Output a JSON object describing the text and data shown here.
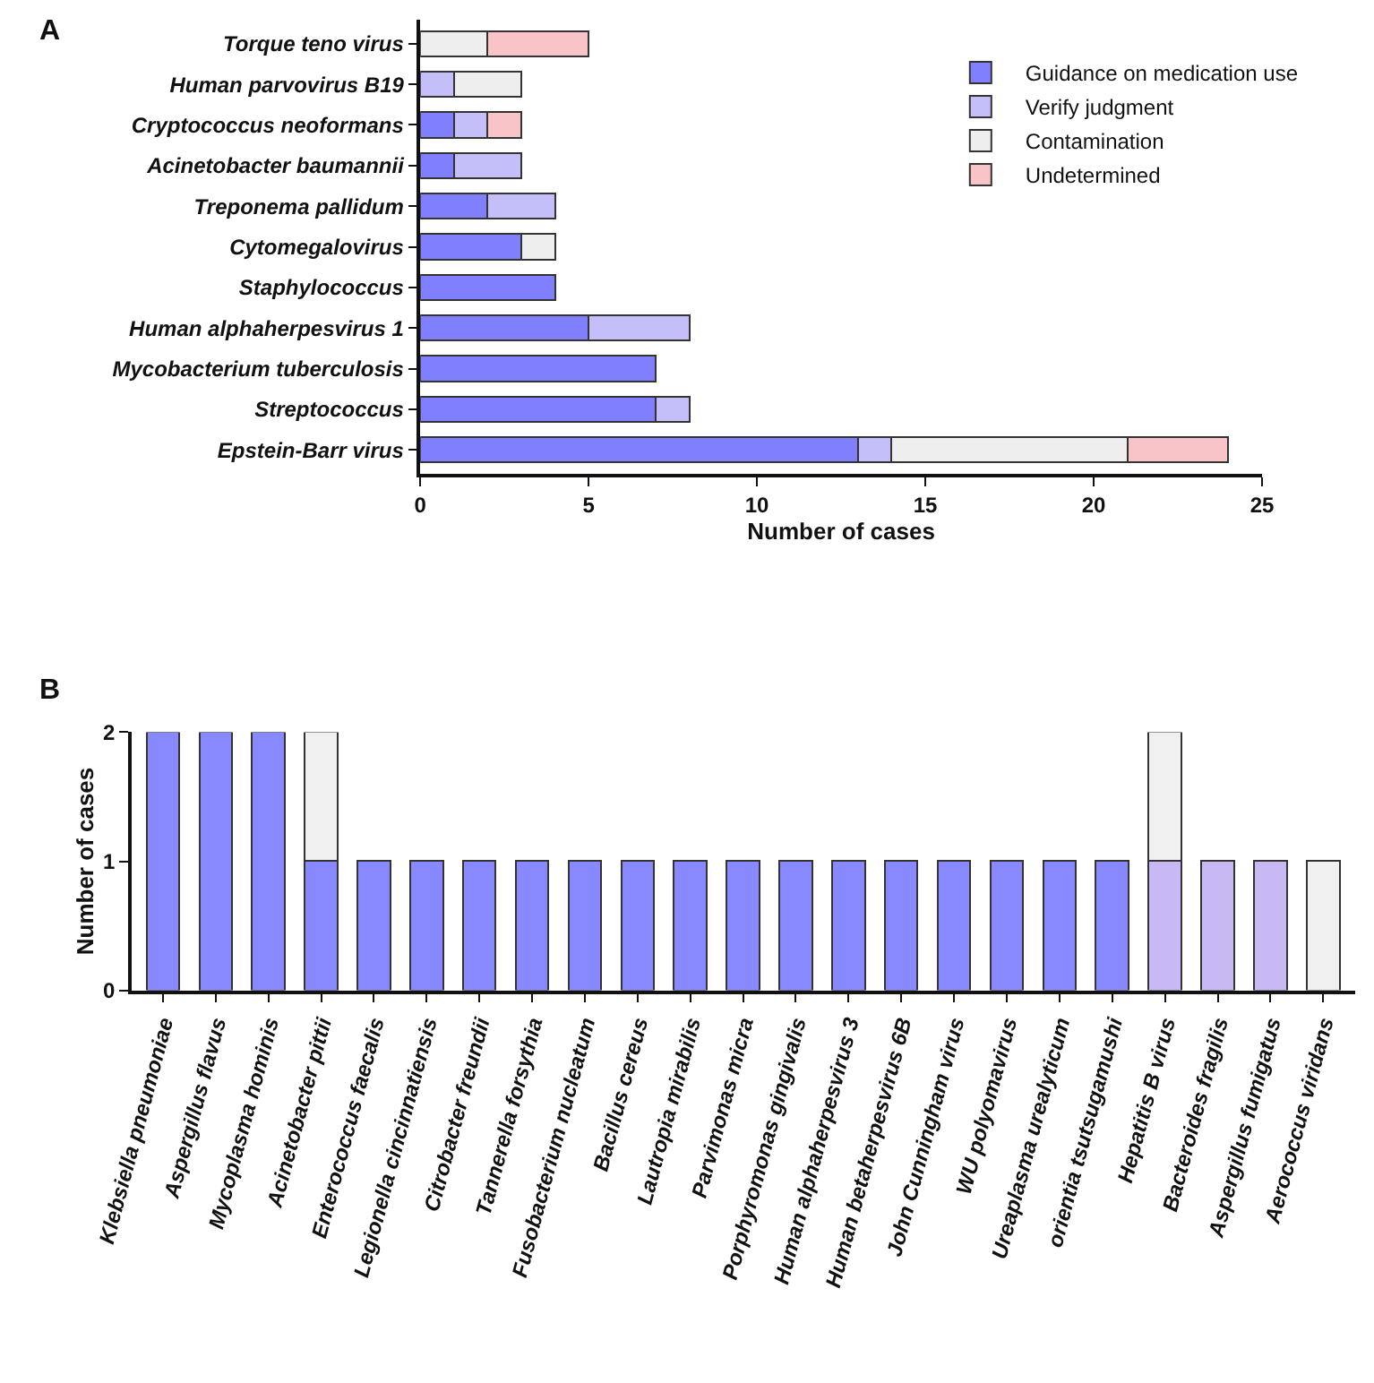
{
  "chart_data": [
    {
      "type": "bar",
      "orientation": "horizontal",
      "stacked": true,
      "annotations": [
        "A"
      ],
      "xlabel": "Number of cases",
      "xlim": [
        0,
        25
      ],
      "xticks": [
        0,
        5,
        10,
        15,
        20,
        25
      ],
      "legend": "top right",
      "categories": [
        "Torque teno virus",
        "Human parvovirus B19",
        "Cryptococcus neoformans",
        "Acinetobacter baumannii",
        "Treponema pallidum",
        "Cytomegalovirus",
        "Staphylococcus",
        "Human alphaherpesvirus 1",
        "Mycobacterium tuberculosis",
        "Streptococcus",
        "Epstein-Barr virus"
      ],
      "series": [
        {
          "name": "Guidance on medication use",
          "color": "#8080ff",
          "values": [
            null,
            null,
            1,
            1,
            2,
            3,
            4,
            5,
            7,
            7,
            13
          ]
        },
        {
          "name": "Verify judgment",
          "color": "#c4bff8",
          "values": [
            null,
            1,
            1,
            2,
            2,
            null,
            null,
            3,
            null,
            1,
            1
          ]
        },
        {
          "name": "Contamination",
          "color": "#eeeeee",
          "values": [
            2,
            2,
            null,
            null,
            null,
            1,
            null,
            null,
            null,
            null,
            7
          ]
        },
        {
          "name": "Undetermined",
          "color": "#f8c4c8",
          "values": [
            3,
            null,
            1,
            null,
            null,
            null,
            null,
            null,
            null,
            null,
            3
          ]
        }
      ]
    },
    {
      "type": "bar",
      "stacked": true,
      "annotations": [
        "B"
      ],
      "ylabel": "Number of cases",
      "ylim": [
        0,
        2
      ],
      "yticks": [
        0,
        1,
        2
      ],
      "legend": false,
      "categories": [
        "Klebsiella pneumoniae",
        "Aspergillus flavus",
        "Mycoplasma hominis",
        "Acinetobacter pittii",
        "Enterococcus faecalis",
        "Legionella cincinnatiensis",
        "Citrobacter freundii",
        "Tannerella forsythia",
        "Fusobacterium nucleatum",
        "Bacillus cereus",
        "Lautropia mirabilis",
        "Parvimonas micra",
        "Porphyromonas gingivalis",
        "Human alphaherpesvirus 3",
        "Human betaherpesvirus 6B",
        "John Cunningham virus",
        "WU polyomavirus",
        "Ureaplasma urealyticum",
        "orientia tsutsugamushi",
        "Hepatitis B virus",
        "Bacteroides fragilis",
        "Aspergillus fumigatus",
        "Aerococcus viridans"
      ],
      "series": [
        {
          "color": "#8888ff",
          "values": [
            2,
            2,
            2,
            1,
            1,
            1,
            1,
            1,
            1,
            1,
            1,
            1,
            1,
            1,
            1,
            1,
            1,
            1,
            1,
            null,
            null,
            null,
            null
          ]
        },
        {
          "color": "#c8b8f4",
          "values": [
            null,
            null,
            null,
            null,
            null,
            null,
            null,
            null,
            null,
            null,
            null,
            null,
            null,
            null,
            null,
            null,
            null,
            null,
            null,
            1,
            1,
            1,
            null
          ]
        },
        {
          "color": "#f0f0f0",
          "values": [
            null,
            null,
            null,
            1,
            null,
            null,
            null,
            null,
            null,
            null,
            null,
            null,
            null,
            null,
            null,
            null,
            null,
            null,
            null,
            1,
            null,
            null,
            1
          ]
        }
      ]
    }
  ]
}
